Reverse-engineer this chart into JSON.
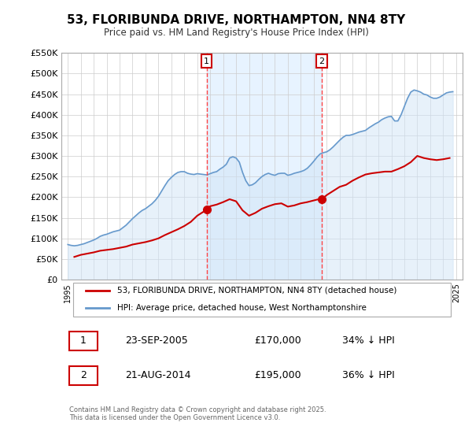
{
  "title": "53, FLORIBUNDA DRIVE, NORTHAMPTON, NN4 8TY",
  "subtitle": "Price paid vs. HM Land Registry's House Price Index (HPI)",
  "title_fontsize": 13,
  "subtitle_fontsize": 10,
  "background_color": "#ffffff",
  "plot_bg_color": "#ffffff",
  "grid_color": "#cccccc",
  "property_color": "#cc0000",
  "hpi_color": "#6699cc",
  "hpi_fill_color": "#d0e4f7",
  "legend1_label": "53, FLORIBUNDA DRIVE, NORTHAMPTON, NN4 8TY (detached house)",
  "legend2_label": "HPI: Average price, detached house, West Northamptonshire",
  "sale1_date": "23-SEP-2005",
  "sale1_price": "£170,000",
  "sale1_hpi": "34% ↓ HPI",
  "sale2_date": "21-AUG-2014",
  "sale2_price": "£195,000",
  "sale2_hpi": "36% ↓ HPI",
  "footer": "Contains HM Land Registry data © Crown copyright and database right 2025.\nThis data is licensed under the Open Government Licence v3.0.",
  "ylim": [
    0,
    550000
  ],
  "yticks": [
    0,
    50000,
    100000,
    150000,
    200000,
    250000,
    300000,
    350000,
    400000,
    450000,
    500000,
    550000
  ],
  "ytick_labels": [
    "£0",
    "£50K",
    "£100K",
    "£150K",
    "£200K",
    "£250K",
    "£300K",
    "£350K",
    "£400K",
    "£450K",
    "£500K",
    "£550K"
  ],
  "sale1_x": 2005.72,
  "sale1_y": 170000,
  "sale2_x": 2014.63,
  "sale2_y": 195000,
  "vline1_x": 2005.72,
  "vline2_x": 2014.63,
  "hpi_data": {
    "years": [
      1995.0,
      1995.25,
      1995.5,
      1995.75,
      1996.0,
      1996.25,
      1996.5,
      1996.75,
      1997.0,
      1997.25,
      1997.5,
      1997.75,
      1998.0,
      1998.25,
      1998.5,
      1998.75,
      1999.0,
      1999.25,
      1999.5,
      1999.75,
      2000.0,
      2000.25,
      2000.5,
      2000.75,
      2001.0,
      2001.25,
      2001.5,
      2001.75,
      2002.0,
      2002.25,
      2002.5,
      2002.75,
      2003.0,
      2003.25,
      2003.5,
      2003.75,
      2004.0,
      2004.25,
      2004.5,
      2004.75,
      2005.0,
      2005.25,
      2005.5,
      2005.75,
      2006.0,
      2006.25,
      2006.5,
      2006.75,
      2007.0,
      2007.25,
      2007.5,
      2007.75,
      2008.0,
      2008.25,
      2008.5,
      2008.75,
      2009.0,
      2009.25,
      2009.5,
      2009.75,
      2010.0,
      2010.25,
      2010.5,
      2010.75,
      2011.0,
      2011.25,
      2011.5,
      2011.75,
      2012.0,
      2012.25,
      2012.5,
      2012.75,
      2013.0,
      2013.25,
      2013.5,
      2013.75,
      2014.0,
      2014.25,
      2014.5,
      2014.75,
      2015.0,
      2015.25,
      2015.5,
      2015.75,
      2016.0,
      2016.25,
      2016.5,
      2016.75,
      2017.0,
      2017.25,
      2017.5,
      2017.75,
      2018.0,
      2018.25,
      2018.5,
      2018.75,
      2019.0,
      2019.25,
      2019.5,
      2019.75,
      2020.0,
      2020.25,
      2020.5,
      2020.75,
      2021.0,
      2021.25,
      2021.5,
      2021.75,
      2022.0,
      2022.25,
      2022.5,
      2022.75,
      2023.0,
      2023.25,
      2023.5,
      2023.75,
      2024.0,
      2024.25,
      2024.5,
      2024.75
    ],
    "values": [
      85000,
      83000,
      82000,
      83000,
      85000,
      87000,
      90000,
      93000,
      96000,
      100000,
      105000,
      108000,
      110000,
      113000,
      116000,
      118000,
      120000,
      126000,
      132000,
      140000,
      148000,
      155000,
      162000,
      168000,
      172000,
      178000,
      184000,
      192000,
      202000,
      215000,
      228000,
      240000,
      248000,
      255000,
      260000,
      262000,
      262000,
      258000,
      256000,
      255000,
      257000,
      256000,
      255000,
      254000,
      257000,
      260000,
      262000,
      268000,
      273000,
      280000,
      295000,
      298000,
      295000,
      285000,
      260000,
      240000,
      228000,
      230000,
      235000,
      243000,
      250000,
      255000,
      258000,
      255000,
      253000,
      257000,
      258000,
      258000,
      253000,
      255000,
      258000,
      260000,
      262000,
      265000,
      270000,
      278000,
      287000,
      297000,
      305000,
      308000,
      310000,
      315000,
      322000,
      330000,
      338000,
      345000,
      350000,
      350000,
      352000,
      355000,
      358000,
      360000,
      362000,
      368000,
      373000,
      378000,
      382000,
      388000,
      392000,
      395000,
      396000,
      385000,
      385000,
      400000,
      420000,
      440000,
      455000,
      460000,
      458000,
      455000,
      450000,
      448000,
      443000,
      440000,
      440000,
      443000,
      448000,
      453000,
      455000,
      456000
    ]
  },
  "property_data": {
    "years": [
      1995.5,
      1996.0,
      1996.5,
      1997.0,
      1997.5,
      1998.0,
      1998.5,
      1999.0,
      1999.5,
      2000.0,
      2000.5,
      2001.0,
      2001.5,
      2002.0,
      2002.5,
      2003.0,
      2003.5,
      2004.0,
      2004.5,
      2005.0,
      2005.5,
      2005.72,
      2006.0,
      2006.5,
      2007.0,
      2007.5,
      2008.0,
      2008.5,
      2009.0,
      2009.5,
      2010.0,
      2010.5,
      2011.0,
      2011.5,
      2012.0,
      2012.5,
      2013.0,
      2013.5,
      2014.0,
      2014.5,
      2014.63,
      2015.0,
      2015.5,
      2016.0,
      2016.5,
      2017.0,
      2017.5,
      2018.0,
      2018.5,
      2019.0,
      2019.5,
      2020.0,
      2020.5,
      2021.0,
      2021.5,
      2022.0,
      2022.5,
      2023.0,
      2023.5,
      2024.0,
      2024.5
    ],
    "values": [
      55000,
      60000,
      63000,
      66000,
      70000,
      72000,
      74000,
      77000,
      80000,
      85000,
      88000,
      91000,
      95000,
      100000,
      108000,
      115000,
      122000,
      130000,
      140000,
      155000,
      165000,
      170000,
      178000,
      182000,
      188000,
      195000,
      190000,
      168000,
      155000,
      162000,
      172000,
      178000,
      183000,
      185000,
      177000,
      180000,
      185000,
      188000,
      192000,
      196000,
      195000,
      205000,
      215000,
      225000,
      230000,
      240000,
      248000,
      255000,
      258000,
      260000,
      262000,
      262000,
      268000,
      275000,
      285000,
      300000,
      295000,
      292000,
      290000,
      292000,
      295000
    ]
  },
  "xtick_years": [
    1995,
    1996,
    1997,
    1998,
    1999,
    2000,
    2001,
    2002,
    2003,
    2004,
    2005,
    2006,
    2007,
    2008,
    2009,
    2010,
    2011,
    2012,
    2013,
    2014,
    2015,
    2016,
    2017,
    2018,
    2019,
    2020,
    2021,
    2022,
    2023,
    2024,
    2025
  ],
  "xlim": [
    1994.5,
    2025.5
  ]
}
